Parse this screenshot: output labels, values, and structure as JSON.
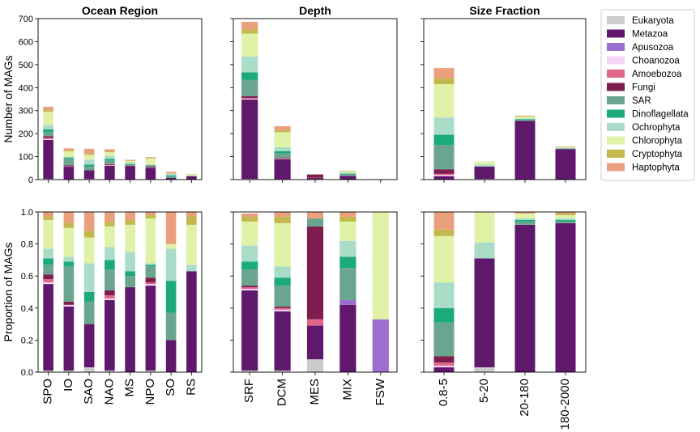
{
  "colors": {
    "Eukaryota": "#cccccc",
    "Metazoa": "#5f186b",
    "Apusozoa": "#9a6fcf",
    "Choanozoa": "#f8d4f8",
    "Amoebozoa": "#e0668a",
    "Fungi": "#7f1d4e",
    "SAR": "#6aa58f",
    "Dinoflagellata": "#1ca97c",
    "Ochrophyta": "#a9ddc8",
    "Chlorophyta": "#dff2a8",
    "Cryptophyta": "#c2b84b",
    "Haptophyta": "#eaa07c"
  },
  "legend": [
    "Eukaryota",
    "Metazoa",
    "Apusozoa",
    "Choanozoa",
    "Amoebozoa",
    "Fungi",
    "SAR",
    "Dinoflagellata",
    "Ochrophyta",
    "Chlorophyta",
    "Cryptophyta",
    "Haptophyta"
  ],
  "chart_data": [
    {
      "type": "bar",
      "stacked": true,
      "title": "Ocean Region",
      "ylabel": "Number of MAGs",
      "ylim": [
        0,
        700
      ],
      "yticks": [
        0,
        100,
        200,
        300,
        400,
        500,
        600,
        700
      ],
      "categories": [
        "SPO",
        "IO",
        "SAO",
        "NAO",
        "MS",
        "NPO",
        "SO",
        "RS"
      ],
      "series": [
        {
          "name": "Eukaryota",
          "values": [
            3,
            1,
            3,
            1,
            0,
            1,
            0,
            0
          ]
        },
        {
          "name": "Metazoa",
          "values": [
            170,
            55,
            38,
            59,
            57,
            50,
            7,
            15
          ]
        },
        {
          "name": "Apusozoa",
          "values": [
            0,
            0,
            0,
            0,
            0,
            0,
            0,
            0
          ]
        },
        {
          "name": "Choanozoa",
          "values": [
            3,
            1,
            0,
            2,
            0,
            1,
            0,
            0
          ]
        },
        {
          "name": "Amoebozoa",
          "values": [
            6,
            1,
            0,
            2,
            0,
            1,
            0,
            0
          ]
        },
        {
          "name": "Fungi",
          "values": [
            7,
            4,
            0,
            3,
            3,
            3,
            0,
            0
          ]
        },
        {
          "name": "SAR",
          "values": [
            18,
            30,
            17,
            15,
            5,
            7,
            6,
            0
          ]
        },
        {
          "name": "Dinoflagellata",
          "values": [
            12,
            4,
            7,
            8,
            3,
            1,
            5,
            0
          ]
        },
        {
          "name": "Ochrophyta",
          "values": [
            18,
            4,
            22,
            12,
            7,
            1,
            7,
            1
          ]
        },
        {
          "name": "Chlorophyta",
          "values": [
            58,
            23,
            21,
            17,
            6,
            28,
            1,
            6
          ]
        },
        {
          "name": "Cryptophyta",
          "values": [
            7,
            4,
            6,
            4,
            1,
            2,
            0,
            0
          ]
        },
        {
          "name": "Haptophyta",
          "values": [
            15,
            9,
            20,
            9,
            4,
            3,
            8,
            2
          ]
        }
      ]
    },
    {
      "type": "bar",
      "stacked": true,
      "title": "Depth",
      "ylim": [
        0,
        700
      ],
      "categories": [
        "SRF",
        "DCM",
        "MES",
        "MIX",
        "FSW"
      ],
      "series": [
        {
          "name": "Eukaryota",
          "values": [
            3,
            2,
            2,
            0,
            0
          ]
        },
        {
          "name": "Metazoa",
          "values": [
            345,
            86,
            5,
            17,
            0
          ]
        },
        {
          "name": "Apusozoa",
          "values": [
            0,
            0,
            0,
            0,
            1
          ]
        },
        {
          "name": "Choanozoa",
          "values": [
            3,
            1,
            0,
            1,
            0
          ]
        },
        {
          "name": "Amoebozoa",
          "values": [
            4,
            2,
            1,
            0,
            0
          ]
        },
        {
          "name": "Fungi",
          "values": [
            8,
            3,
            14,
            0,
            0
          ]
        },
        {
          "name": "SAR",
          "values": [
            70,
            20,
            1,
            5,
            0
          ]
        },
        {
          "name": "Dinoflagellata",
          "values": [
            33,
            10,
            0,
            3,
            0
          ]
        },
        {
          "name": "Ochrophyta",
          "values": [
            69,
            17,
            0,
            4,
            0
          ]
        },
        {
          "name": "Chlorophyta",
          "values": [
            100,
            65,
            0,
            5,
            2
          ]
        },
        {
          "name": "Cryptophyta",
          "values": [
            19,
            8,
            0,
            1,
            0
          ]
        },
        {
          "name": "Haptophyta",
          "values": [
            32,
            18,
            1,
            2,
            0
          ]
        }
      ]
    },
    {
      "type": "bar",
      "stacked": true,
      "title": "Size Fraction",
      "ylim": [
        0,
        700
      ],
      "categories": [
        "0.8-5",
        "5-20",
        "20-180",
        "180-2000"
      ],
      "series": [
        {
          "name": "Eukaryota",
          "values": [
            0,
            3,
            0,
            0
          ]
        },
        {
          "name": "Metazoa",
          "values": [
            15,
            54,
            255,
            133
          ]
        },
        {
          "name": "Apusozoa",
          "values": [
            0,
            0,
            0,
            0
          ]
        },
        {
          "name": "Choanozoa",
          "values": [
            5,
            0,
            0,
            0
          ]
        },
        {
          "name": "Amoebozoa",
          "values": [
            5,
            0,
            0,
            0
          ]
        },
        {
          "name": "Fungi",
          "values": [
            20,
            0,
            0,
            0
          ]
        },
        {
          "name": "SAR",
          "values": [
            105,
            0,
            5,
            2
          ]
        },
        {
          "name": "Dinoflagellata",
          "values": [
            45,
            0,
            3,
            1
          ]
        },
        {
          "name": "Ochrophyta",
          "values": [
            75,
            8,
            3,
            2
          ]
        },
        {
          "name": "Chlorophyta",
          "values": [
            145,
            14,
            8,
            3
          ]
        },
        {
          "name": "Cryptophyta",
          "values": [
            25,
            0,
            2,
            1
          ]
        },
        {
          "name": "Haptophyta",
          "values": [
            45,
            0,
            2,
            2
          ]
        }
      ]
    },
    {
      "type": "bar",
      "stacked": true,
      "ylabel": "Proportion of MAGs",
      "ylim": [
        0,
        1
      ],
      "yticks": [
        0.0,
        0.2,
        0.4,
        0.6,
        0.8,
        1.0
      ],
      "categories": [
        "SPO",
        "IO",
        "SAO",
        "NAO",
        "MS",
        "NPO",
        "SO",
        "RS"
      ],
      "series": [
        {
          "name": "Eukaryota",
          "values": [
            0.01,
            0.01,
            0.03,
            0.01,
            0,
            0.01,
            0,
            0
          ]
        },
        {
          "name": "Metazoa",
          "values": [
            0.54,
            0.4,
            0.27,
            0.44,
            0.53,
            0.53,
            0.2,
            0.63
          ]
        },
        {
          "name": "Apusozoa",
          "values": [
            0,
            0,
            0,
            0,
            0,
            0,
            0,
            0
          ]
        },
        {
          "name": "Choanozoa",
          "values": [
            0.01,
            0.01,
            0,
            0.01,
            0,
            0.01,
            0,
            0
          ]
        },
        {
          "name": "Amoebozoa",
          "values": [
            0.02,
            0,
            0,
            0.02,
            0,
            0.01,
            0,
            0
          ]
        },
        {
          "name": "Fungi",
          "values": [
            0.03,
            0.02,
            0,
            0.03,
            0,
            0.03,
            0,
            0
          ]
        },
        {
          "name": "SAR",
          "values": [
            0.06,
            0.22,
            0.14,
            0.13,
            0.07,
            0.07,
            0.17,
            0
          ]
        },
        {
          "name": "Dinoflagellata",
          "values": [
            0.04,
            0.03,
            0.06,
            0.06,
            0.03,
            0.01,
            0.2,
            0
          ]
        },
        {
          "name": "Ochrophyta",
          "values": [
            0.06,
            0.03,
            0.18,
            0.08,
            0.12,
            0.01,
            0.2,
            0.04
          ]
        },
        {
          "name": "Chlorophyta",
          "values": [
            0.18,
            0.18,
            0.16,
            0.13,
            0.17,
            0.28,
            0.03,
            0.25
          ]
        },
        {
          "name": "Cryptophyta",
          "values": [
            0.02,
            0.03,
            0.04,
            0.03,
            0.03,
            0.02,
            0,
            0.05
          ]
        },
        {
          "name": "Haptophyta",
          "values": [
            0.03,
            0.07,
            0.12,
            0.06,
            0.05,
            0.02,
            0.2,
            0.03
          ]
        }
      ]
    },
    {
      "type": "bar",
      "stacked": true,
      "ylim": [
        0,
        1
      ],
      "categories": [
        "SRF",
        "DCM",
        "MES",
        "MIX",
        "FSW"
      ],
      "series": [
        {
          "name": "Eukaryota",
          "values": [
            0.01,
            0.01,
            0.08,
            0,
            0
          ]
        },
        {
          "name": "Metazoa",
          "values": [
            0.5,
            0.37,
            0.21,
            0.42,
            0
          ]
        },
        {
          "name": "Apusozoa",
          "values": [
            0,
            0,
            0,
            0.03,
            0.33
          ]
        },
        {
          "name": "Choanozoa",
          "values": [
            0.01,
            0.01,
            0,
            0,
            0
          ]
        },
        {
          "name": "Amoebozoa",
          "values": [
            0.01,
            0.01,
            0.04,
            0,
            0
          ]
        },
        {
          "name": "Fungi",
          "values": [
            0.01,
            0.01,
            0.58,
            0,
            0
          ]
        },
        {
          "name": "SAR",
          "values": [
            0.1,
            0.13,
            0.05,
            0.2,
            0
          ]
        },
        {
          "name": "Dinoflagellata",
          "values": [
            0.05,
            0.05,
            0,
            0.07,
            0
          ]
        },
        {
          "name": "Ochrophyta",
          "values": [
            0.1,
            0.07,
            0,
            0.1,
            0
          ]
        },
        {
          "name": "Chlorophyta",
          "values": [
            0.15,
            0.27,
            0,
            0.12,
            0.67
          ]
        },
        {
          "name": "Cryptophyta",
          "values": [
            0.03,
            0.04,
            0,
            0.03,
            0
          ]
        },
        {
          "name": "Haptophyta",
          "values": [
            0.02,
            0.03,
            0.04,
            0.03,
            0
          ]
        }
      ]
    },
    {
      "type": "bar",
      "stacked": true,
      "ylim": [
        0,
        1
      ],
      "categories": [
        "0.8-5",
        "5-20",
        "20-180",
        "180-2000"
      ],
      "series": [
        {
          "name": "Eukaryota",
          "values": [
            0,
            0.03,
            0,
            0
          ]
        },
        {
          "name": "Metazoa",
          "values": [
            0.03,
            0.68,
            0.92,
            0.93
          ]
        },
        {
          "name": "Apusozoa",
          "values": [
            0,
            0,
            0,
            0
          ]
        },
        {
          "name": "Choanozoa",
          "values": [
            0.01,
            0,
            0,
            0
          ]
        },
        {
          "name": "Amoebozoa",
          "values": [
            0.02,
            0,
            0,
            0
          ]
        },
        {
          "name": "Fungi",
          "values": [
            0.04,
            0,
            0,
            0
          ]
        },
        {
          "name": "SAR",
          "values": [
            0.21,
            0,
            0.02,
            0.01
          ]
        },
        {
          "name": "Dinoflagellata",
          "values": [
            0.09,
            0,
            0.01,
            0.01
          ]
        },
        {
          "name": "Ochrophyta",
          "values": [
            0.16,
            0.1,
            0.01,
            0.01
          ]
        },
        {
          "name": "Chlorophyta",
          "values": [
            0.29,
            0.19,
            0.03,
            0.02
          ]
        },
        {
          "name": "Cryptophyta",
          "values": [
            0.04,
            0,
            0,
            0.01
          ]
        },
        {
          "name": "Haptophyta",
          "values": [
            0.11,
            0,
            0.01,
            0.01
          ]
        }
      ]
    }
  ]
}
